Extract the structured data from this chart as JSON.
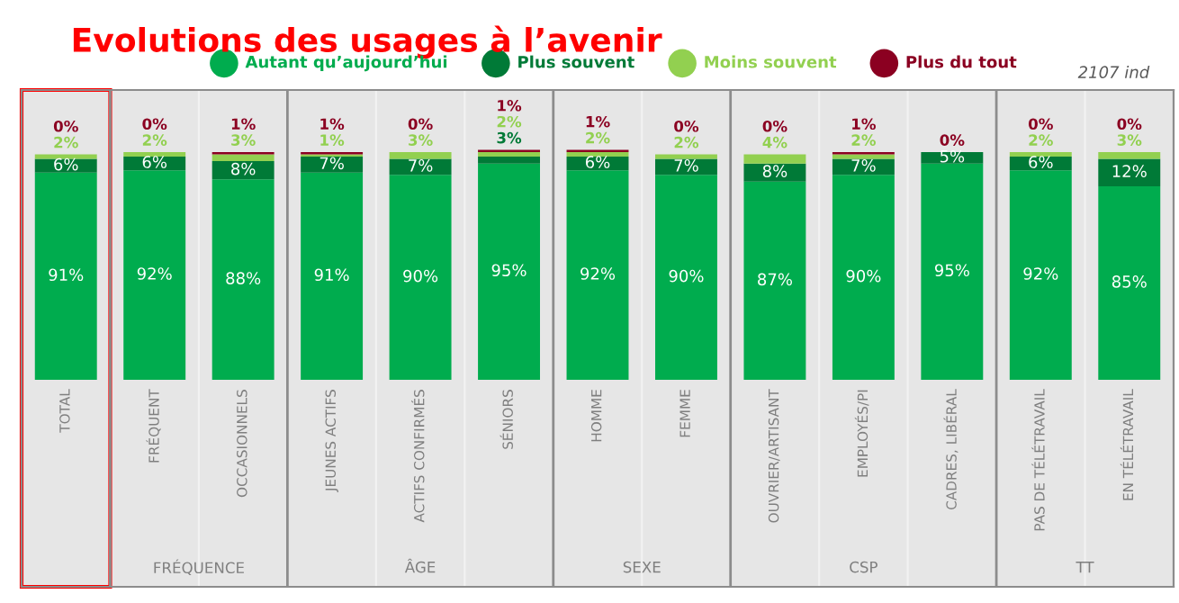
{
  "chart_data": {
    "type": "bar",
    "stacked": true,
    "title": "Evolutions des usages à l’avenir",
    "legend": "top",
    "categories": [
      "TOTAL",
      "FRÉQUENT",
      "OCCASIONNELS",
      "JEUNES ACTIFS",
      "ACTIFS CONFIRMÉS",
      "SÉNIORS",
      "HOMME",
      "FEMME",
      "OUVRIER/ARTISANT",
      "EMPLOYÉS/PI",
      "CADRES, LIBÉRAL",
      "PAS DE TÉLÉTRAVAIL",
      "EN TÉLÉTRAVAIL"
    ],
    "series": [
      {
        "name": "Autant qu’aujourd’hui",
        "color": "#00ac4e",
        "values": [
          91,
          92,
          88,
          91,
          90,
          95,
          92,
          90,
          87,
          90,
          95,
          92,
          85
        ],
        "value_labels": [
          "91%",
          "92%",
          "88%",
          "91%",
          "90%",
          "95%",
          "92%",
          "90%",
          "87%",
          "90%",
          "95%",
          "92%",
          "85%"
        ]
      },
      {
        "name": "Plus souvent",
        "color": "#007a37",
        "values": [
          6,
          6,
          8,
          7,
          7,
          3,
          6,
          7,
          8,
          7,
          5,
          6,
          12
        ],
        "value_labels": [
          "6%",
          "6%",
          "8%",
          "7%",
          "7%",
          "3%",
          "6%",
          "7%",
          "8%",
          "7%",
          "5%",
          "6%",
          "12%"
        ]
      },
      {
        "name": "Moins souvent",
        "color": "#92d050",
        "values": [
          2,
          2,
          3,
          1,
          3,
          2,
          2,
          2,
          4,
          2,
          0,
          2,
          3
        ],
        "value_labels": [
          "2%",
          "2%",
          "3%",
          "1%",
          "3%",
          "2%",
          "2%",
          "2%",
          "4%",
          "2%",
          null,
          "2%",
          "3%"
        ]
      },
      {
        "name": "Plus du tout",
        "color": "#8b0021",
        "values": [
          0,
          0,
          1,
          1,
          0,
          1,
          1,
          0,
          0,
          1,
          0,
          0,
          0
        ],
        "value_labels": [
          "0%",
          "0%",
          "1%",
          "1%",
          "0%",
          "1%",
          "1%",
          "0%",
          "0%",
          "1%",
          "0%",
          "0%",
          "0%"
        ]
      }
    ],
    "annotations": [
      "2107 ind",
      "FRÉQUENCE",
      "ÂGE",
      "SEXE",
      "CSP",
      "TT"
    ]
  }
}
